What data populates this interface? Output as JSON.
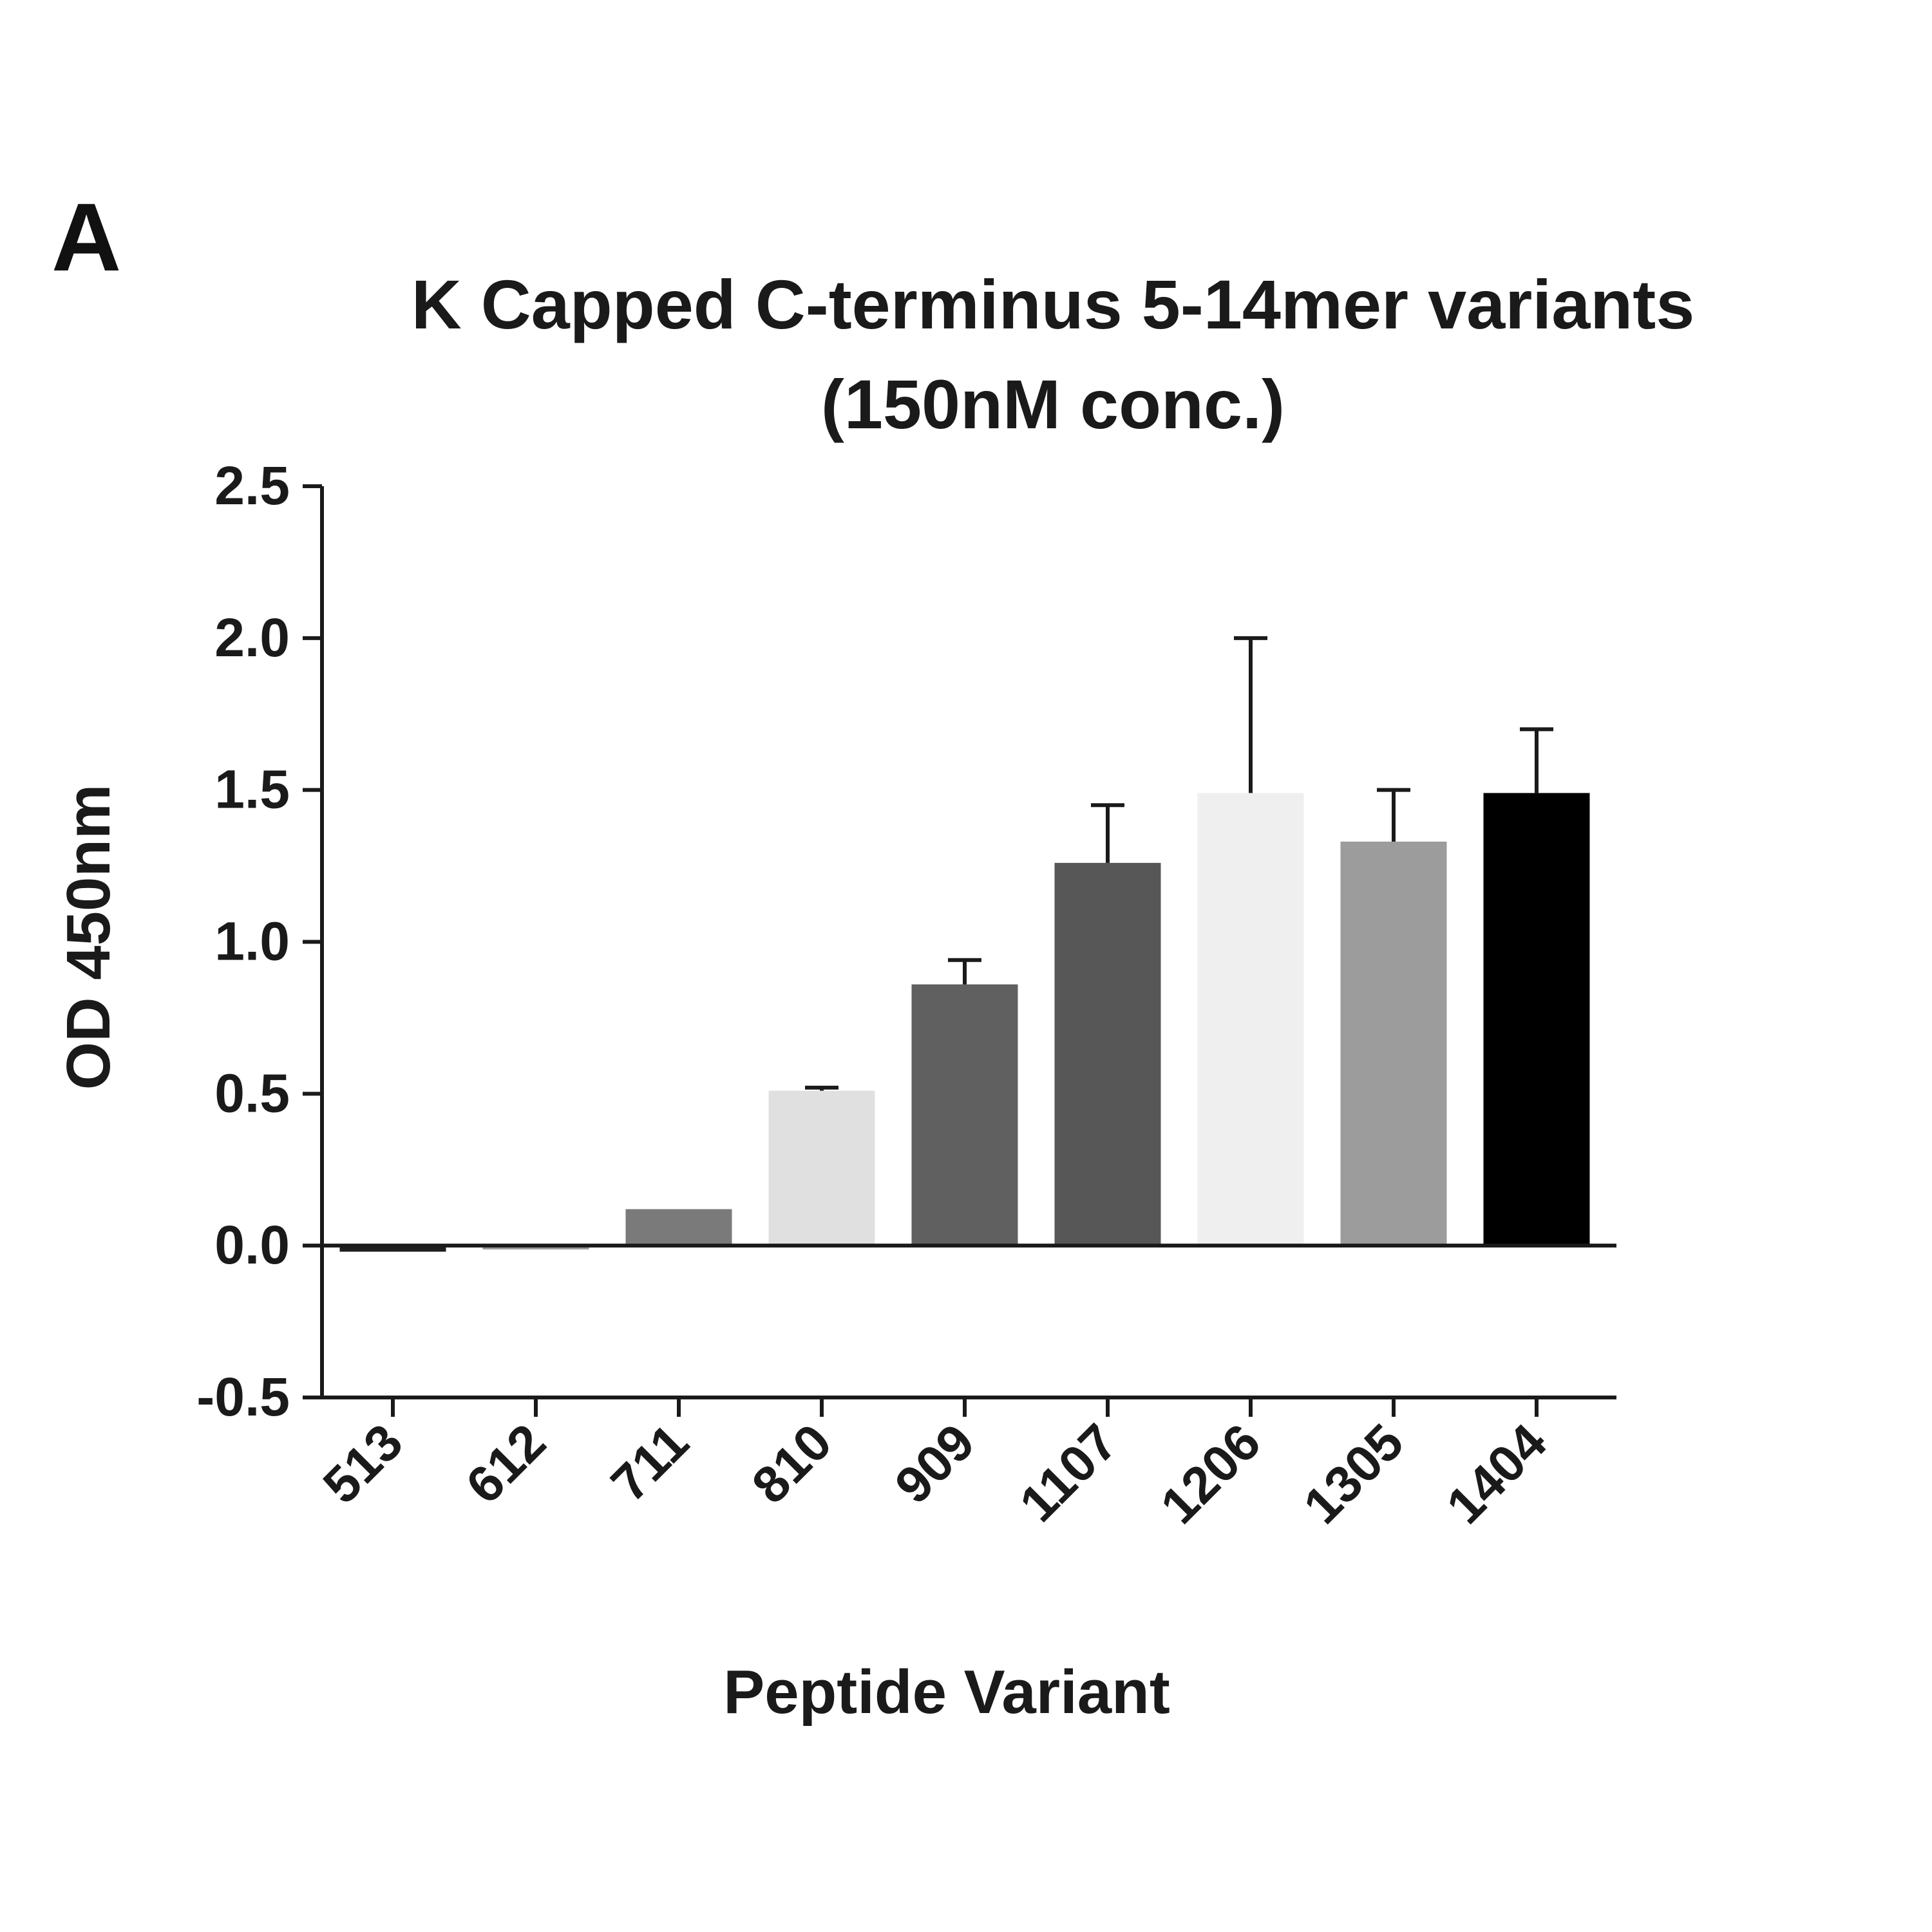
{
  "panel_label": "A",
  "chart_data": {
    "type": "bar",
    "title": "K Capped C-terminus 5-14mer variants",
    "subtitle": "(150nM conc.)",
    "xlabel": "Peptide Variant",
    "ylabel": "OD 450nm",
    "ylim": [
      -0.5,
      2.5
    ],
    "yticks": [
      "2.5",
      "2.0",
      "1.5",
      "1.0",
      "0.5",
      "0.0",
      "-0.5"
    ],
    "ytick_values": [
      2.5,
      2.0,
      1.5,
      1.0,
      0.5,
      0.0,
      -0.5
    ],
    "categories": [
      "513",
      "612",
      "711",
      "810",
      "909",
      "1107",
      "1206",
      "1305",
      "1404"
    ],
    "values": [
      -0.02,
      -0.01,
      0.12,
      0.51,
      0.86,
      1.26,
      1.49,
      1.33,
      1.49
    ],
    "errors": [
      0.0,
      0.0,
      0.0,
      0.01,
      0.08,
      0.19,
      0.51,
      0.17,
      0.21
    ],
    "colors": [
      "#1e1e1e",
      "#9a9a9a",
      "#7a7a7a",
      "#e0e0e0",
      "#606060",
      "#575757",
      "#efefef",
      "#9c9c9c",
      "#000000"
    ],
    "grid": false,
    "legend": "none"
  }
}
